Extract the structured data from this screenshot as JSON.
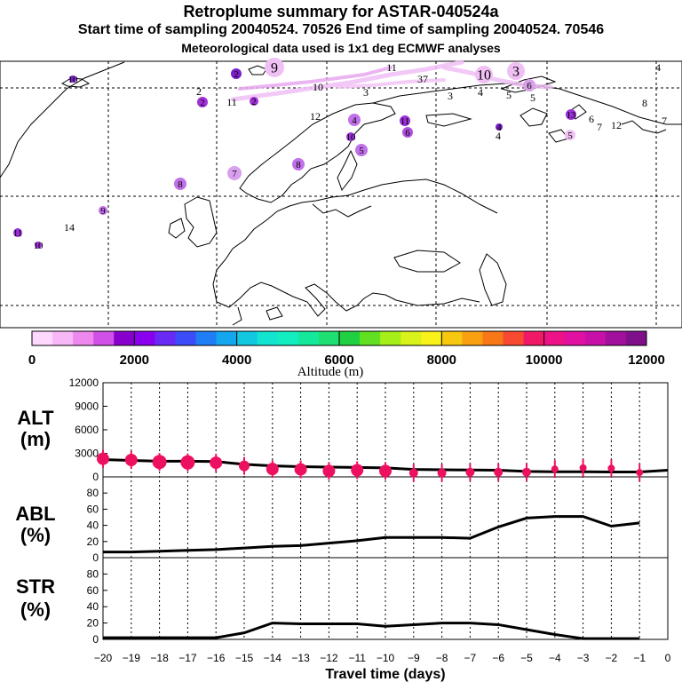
{
  "header": {
    "title": "Retroplume summary for ASTAR-040524a",
    "line2": "Start time of sampling 20040524. 70526     End time of sampling 20040524. 70546",
    "line3": "Meteorological data used is 1x1 deg ECMWF analyses"
  },
  "colorbar": {
    "label": "Altitude (m)",
    "ticks": [
      "0",
      "2000",
      "4000",
      "6000",
      "8000",
      "10000",
      "12000"
    ],
    "colors": [
      "#ffd8ff",
      "#f8b8f8",
      "#ee88ee",
      "#d050e8",
      "#8800cc",
      "#8a00ee",
      "#6a2af6",
      "#3b4cf8",
      "#1f7ef5",
      "#14a6ee",
      "#12c8e0",
      "#12e4d0",
      "#12eec0",
      "#14e89a",
      "#1ee070",
      "#1fd040",
      "#60e020",
      "#a6ee1a",
      "#d8f21a",
      "#f8f21a",
      "#f8c810",
      "#f8a010",
      "#f87818",
      "#f84a30",
      "#f21868",
      "#ee1288",
      "#e010a0",
      "#c810a8",
      "#a0109c",
      "#80108a"
    ]
  },
  "map": {
    "labels": [
      {
        "text": "9",
        "x": 309,
        "y": 76,
        "r": 11,
        "fill": "#f0c0f4"
      },
      {
        "text": "11",
        "x": 441,
        "y": 76,
        "r": 0,
        "fill": "none"
      },
      {
        "text": "10",
        "x": 545,
        "y": 84,
        "r": 10,
        "fill": "#f0c0f4"
      },
      {
        "text": "3",
        "x": 581,
        "y": 80,
        "r": 10,
        "fill": "#f0c0f4"
      },
      {
        "text": "4",
        "x": 741,
        "y": 76,
        "r": 0,
        "fill": "none"
      },
      {
        "text": "37",
        "x": 476,
        "y": 89,
        "r": 0,
        "fill": "none"
      },
      {
        "text": "10",
        "x": 82,
        "y": 89,
        "r": 4,
        "fill": "#7a20c8"
      },
      {
        "text": "2",
        "x": 266,
        "y": 83,
        "r": 6,
        "fill": "#7a20c8"
      },
      {
        "text": "6",
        "x": 596,
        "y": 96,
        "r": 7,
        "fill": "#d8a0e8"
      },
      {
        "text": "10",
        "x": 358,
        "y": 98,
        "r": 0,
        "fill": "none"
      },
      {
        "text": "4",
        "x": 541,
        "y": 104,
        "r": 0,
        "fill": "none"
      },
      {
        "text": "5",
        "x": 573,
        "y": 107,
        "r": 0,
        "fill": "none"
      },
      {
        "text": "2",
        "x": 224,
        "y": 103,
        "r": 0,
        "fill": "none"
      },
      {
        "text": "3",
        "x": 412,
        "y": 104,
        "r": 0,
        "fill": "none"
      },
      {
        "text": "3",
        "x": 507,
        "y": 108,
        "r": 0,
        "fill": "none"
      },
      {
        "text": "5",
        "x": 600,
        "y": 110,
        "r": 0,
        "fill": "none"
      },
      {
        "text": "2",
        "x": 228,
        "y": 115,
        "r": 6,
        "fill": "#a030d8"
      },
      {
        "text": "11",
        "x": 261,
        "y": 115,
        "r": 0,
        "fill": "none"
      },
      {
        "text": "2",
        "x": 286,
        "y": 114,
        "r": 5,
        "fill": "#a030d8"
      },
      {
        "text": "8",
        "x": 726,
        "y": 116,
        "r": 0,
        "fill": "none"
      },
      {
        "text": "12",
        "x": 355,
        "y": 131,
        "r": 0,
        "fill": "none"
      },
      {
        "text": "4",
        "x": 399,
        "y": 135,
        "r": 7,
        "fill": "#c070e8"
      },
      {
        "text": "11",
        "x": 456,
        "y": 136,
        "r": 6,
        "fill": "#9a30d8"
      },
      {
        "text": "13",
        "x": 643,
        "y": 129,
        "r": 6,
        "fill": "#9a30d8"
      },
      {
        "text": "7",
        "x": 748,
        "y": 136,
        "r": 0,
        "fill": "none"
      },
      {
        "text": "6",
        "x": 666,
        "y": 134,
        "r": 0,
        "fill": "none"
      },
      {
        "text": "7",
        "x": 675,
        "y": 143,
        "r": 0,
        "fill": "none"
      },
      {
        "text": "12",
        "x": 694,
        "y": 141,
        "r": 0,
        "fill": "none"
      },
      {
        "text": "4",
        "x": 562,
        "y": 143,
        "r": 4,
        "fill": "#7a20c8"
      },
      {
        "text": "6",
        "x": 459,
        "y": 149,
        "r": 6,
        "fill": "#b050e0"
      },
      {
        "text": "4",
        "x": 561,
        "y": 153,
        "r": 0,
        "fill": "none"
      },
      {
        "text": "5",
        "x": 642,
        "y": 152,
        "r": 6,
        "fill": "#f0c0f4"
      },
      {
        "text": "10",
        "x": 395,
        "y": 154,
        "r": 5,
        "fill": "#9a30d8"
      },
      {
        "text": "5",
        "x": 407,
        "y": 169,
        "r": 7,
        "fill": "#c070e8"
      },
      {
        "text": "8",
        "x": 336,
        "y": 185,
        "r": 7,
        "fill": "#c070e8"
      },
      {
        "text": "7",
        "x": 264,
        "y": 195,
        "r": 8,
        "fill": "#d8a0ee"
      },
      {
        "text": "8",
        "x": 203,
        "y": 207,
        "r": 7,
        "fill": "#c070e8"
      },
      {
        "text": "9",
        "x": 116,
        "y": 237,
        "r": 5,
        "fill": "#c070e8"
      },
      {
        "text": "14",
        "x": 78,
        "y": 256,
        "r": 0,
        "fill": "none"
      },
      {
        "text": "11",
        "x": 20,
        "y": 262,
        "r": 5,
        "fill": "#9a30d8"
      },
      {
        "text": "10",
        "x": 43,
        "y": 276,
        "r": 4,
        "fill": "#9a30d8"
      }
    ]
  },
  "panels": {
    "alt": {
      "label_main": "ALT",
      "label_unit": "(m)",
      "yticks": [
        "0",
        "3000",
        "6000",
        "9000",
        "12000"
      ],
      "ymax": 12000
    },
    "abl": {
      "label_main": "ABL",
      "label_unit": "(%)",
      "yticks": [
        "0",
        "20",
        "40",
        "60",
        "80"
      ],
      "ymax": 100
    },
    "str": {
      "label_main": "STR",
      "label_unit": "(%)",
      "yticks": [
        "0",
        "20",
        "40",
        "60",
        "80"
      ],
      "ymax": 100
    },
    "xticks": [
      "−20",
      "−19",
      "−18",
      "−17",
      "−16",
      "−15",
      "−14",
      "−13",
      "−12",
      "−11",
      "−10",
      "−9",
      "−8",
      "−7",
      "−6",
      "−5",
      "−4",
      "−3",
      "−2",
      "−1",
      "0"
    ],
    "xlabel": "Travel time (days)"
  },
  "chart_data": {
    "type": "line",
    "x": [
      -20,
      -19,
      -18,
      -17,
      -16,
      -15,
      -14,
      -13,
      -12,
      -11,
      -10,
      -9,
      -8,
      -7,
      -6,
      -5,
      -4,
      -3,
      -2,
      -1,
      0
    ],
    "series": [
      {
        "name": "ALT (m)",
        "x": [
          -20,
          -19,
          -18,
          -17,
          -16,
          -15,
          -14,
          -13,
          -12,
          -11,
          -10,
          -9,
          -8,
          -7,
          -6,
          -5,
          -4,
          -3,
          -2,
          -1,
          0
        ],
        "values": [
          2200,
          2100,
          2000,
          2000,
          1950,
          1600,
          1400,
          1300,
          1250,
          1200,
          1150,
          950,
          900,
          880,
          850,
          700,
          650,
          650,
          620,
          620,
          850
        ]
      },
      {
        "name": "ALT points (m)",
        "x": [
          -20,
          -19,
          -18,
          -17,
          -16,
          -15,
          -14,
          -13,
          -12,
          -11,
          -10,
          -9,
          -8,
          -7,
          -6,
          -5,
          -4,
          -3,
          -2,
          -1
        ],
        "values": [
          2300,
          2150,
          1900,
          1850,
          1800,
          1400,
          1000,
          950,
          750,
          850,
          750,
          500,
          500,
          600,
          600,
          600,
          1000,
          1150,
          1100,
          550
        ]
      },
      {
        "name": "ABL (%)",
        "x": [
          -20,
          -19,
          -18,
          -17,
          -16,
          -15,
          -14,
          -13,
          -12,
          -11,
          -10,
          -9,
          -8,
          -7,
          -6,
          -5,
          -4,
          -3,
          -2,
          -1
        ],
        "values": [
          7,
          7,
          8,
          9,
          10,
          12,
          14,
          15,
          18,
          21,
          25,
          25,
          25,
          24,
          38,
          49,
          51,
          51,
          39,
          43
        ]
      },
      {
        "name": "STR (%)",
        "x": [
          -20,
          -19,
          -18,
          -17,
          -16,
          -15,
          -14,
          -13,
          -12,
          -11,
          -10,
          -9,
          -8,
          -7,
          -6,
          -5,
          -4,
          -3,
          -2,
          -1
        ],
        "values": [
          2,
          2,
          2,
          2,
          2,
          8,
          20,
          19,
          19,
          19,
          16,
          18,
          20,
          20,
          18,
          12,
          6,
          1,
          1,
          1
        ]
      }
    ],
    "xlabel": "Travel time (days)",
    "xlim": [
      -20,
      0
    ],
    "ylim_alt": [
      0,
      12000
    ],
    "ylim_abl": [
      0,
      100
    ],
    "ylim_str": [
      0,
      100
    ]
  }
}
